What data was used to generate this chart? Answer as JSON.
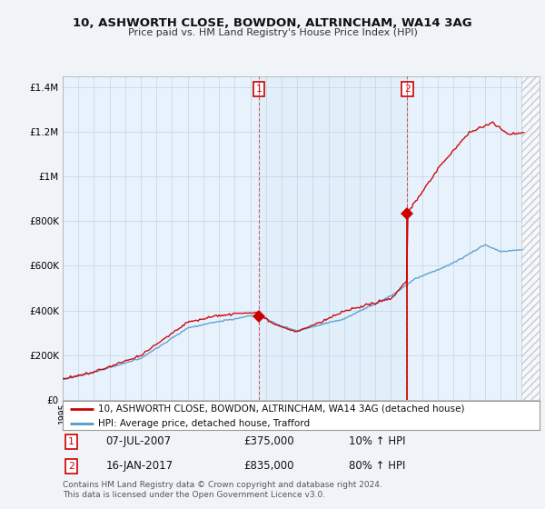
{
  "title": "10, ASHWORTH CLOSE, BOWDON, ALTRINCHAM, WA14 3AG",
  "subtitle": "Price paid vs. HM Land Registry's House Price Index (HPI)",
  "red_label": "10, ASHWORTH CLOSE, BOWDON, ALTRINCHAM, WA14 3AG (detached house)",
  "blue_label": "HPI: Average price, detached house, Trafford",
  "annotation1_date": "07-JUL-2007",
  "annotation1_price": "£375,000",
  "annotation1_hpi": "10% ↑ HPI",
  "annotation2_date": "16-JAN-2017",
  "annotation2_price": "£835,000",
  "annotation2_hpi": "80% ↑ HPI",
  "footer": "Contains HM Land Registry data © Crown copyright and database right 2024.\nThis data is licensed under the Open Government Licence v3.0.",
  "red_color": "#cc0000",
  "blue_color": "#5599cc",
  "background_color": "#f0f4f8",
  "plot_bg_color": "#e8f2fc",
  "shade_color": "#ddeeff",
  "grid_color": "#c8d8e8",
  "ylim": [
    0,
    1450000
  ],
  "xlim_min": 1995,
  "xlim_max": 2025.5,
  "sale1_x": 2007.54,
  "sale1_y": 375000,
  "sale2_x": 2017.04,
  "sale2_y": 835000,
  "hatch_start": 2024.33
}
